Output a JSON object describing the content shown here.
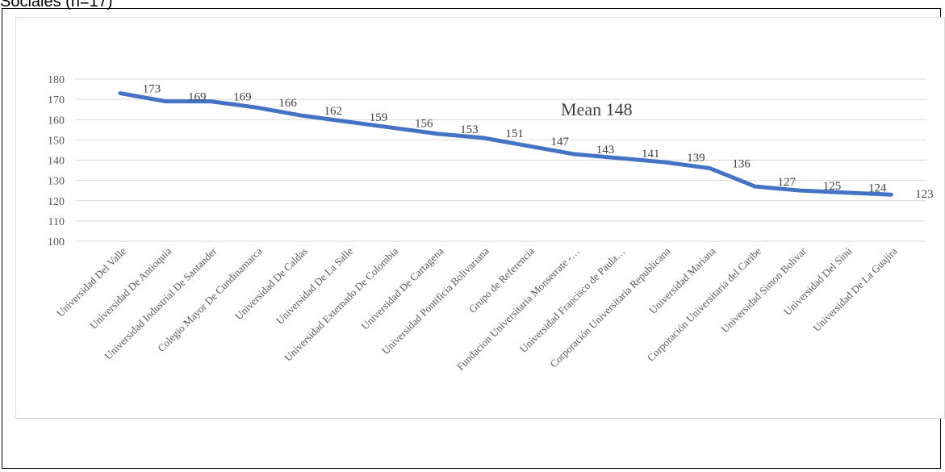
{
  "heading": "Sociales (n=17)",
  "chart_data": {
    "type": "line",
    "title": "",
    "xlabel": "",
    "ylabel": "",
    "categories": [
      "Universidad Del Valle",
      "Universidad De Antioquia",
      "Universidad Industrial De Santander",
      "Colegio Mayor De Cundinamarca",
      "Universidad De Caldas",
      "Universidad De La Salle",
      "Universidad Externado De Colombia",
      "Universidad De Cartagena",
      "Universidad Pontificia Bolivariana",
      "Grupo de Referencia",
      "Fundacion Universitaria Monserrate -…",
      "Universidad Francisco de Paula…",
      "Corporación Universitaria Republicana",
      "Universidad Mariana",
      "Corporación Universitaria del Caribe",
      "Universidad Simon Bolivar",
      "Universidad Del Sinú",
      "Universidad De La Guajira"
    ],
    "series": [
      {
        "values": [
          173,
          169,
          169,
          166,
          162,
          159,
          156,
          153,
          151,
          147,
          143,
          141,
          139,
          136,
          127,
          125,
          124,
          123
        ],
        "data_labels": [
          "173",
          "169",
          "169",
          "166",
          "162",
          "159",
          "156",
          "153",
          "151",
          "147",
          "143",
          "141",
          "139",
          "136",
          "127",
          "125",
          "124",
          "123"
        ],
        "color": "#4472c4"
      }
    ],
    "ylim": [
      100,
      180
    ],
    "yticks": [
      "100",
      "110",
      "120",
      "130",
      "140",
      "150",
      "160",
      "170",
      "180"
    ],
    "grid": true,
    "legend": "none",
    "annotation": "Mean 148"
  }
}
